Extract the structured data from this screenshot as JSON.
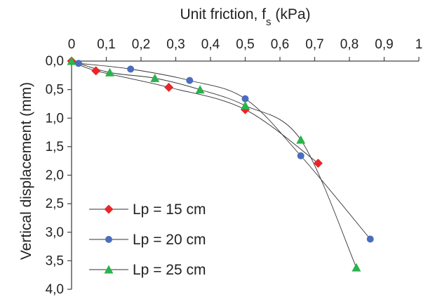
{
  "chart_data": {
    "type": "scatter",
    "xlabel": "Unit friction, f",
    "xlabel_sub": "s",
    "xlabel_unit": " (kPa)",
    "ylabel": "Vertical displacement  (mm)",
    "xlim": [
      0,
      1
    ],
    "ylim": [
      0,
      4
    ],
    "y_inverted": true,
    "x_axis_position": "top",
    "xticks": [
      0,
      0.1,
      0.2,
      0.3,
      0.4,
      0.5,
      0.6,
      0.7,
      0.8,
      0.9,
      1
    ],
    "xtick_labels": [
      "0",
      "0,1",
      "0,2",
      "0,3",
      "0,4",
      "0,5",
      "0,6",
      "0,7",
      "0,8",
      "0,9",
      "1"
    ],
    "yticks": [
      0,
      0.5,
      1,
      1.5,
      2,
      2.5,
      3,
      3.5,
      4
    ],
    "ytick_labels": [
      "0,0",
      "0,5",
      "1,0",
      "1,5",
      "2,0",
      "2,5",
      "3,0",
      "3,5",
      "4,0"
    ],
    "grid": false,
    "legend_position": "bottom-left",
    "series": [
      {
        "name": "Lp = 15 cm",
        "marker": "diamond",
        "color": "#e8262a",
        "points": [
          [
            0,
            0
          ],
          [
            0.07,
            0.17
          ],
          [
            0.28,
            0.46
          ],
          [
            0.5,
            0.85
          ],
          [
            0.71,
            1.79
          ]
        ]
      },
      {
        "name": "Lp = 20 cm",
        "marker": "circle",
        "color": "#4a6dbf",
        "points": [
          [
            0.02,
            0.04
          ],
          [
            0.17,
            0.14
          ],
          [
            0.34,
            0.34
          ],
          [
            0.5,
            0.66
          ],
          [
            0.66,
            1.66
          ],
          [
            0.86,
            3.12
          ]
        ]
      },
      {
        "name": "Lp = 25 cm",
        "marker": "triangle",
        "color": "#2bb24c",
        "points": [
          [
            0,
            0
          ],
          [
            0.11,
            0.2
          ],
          [
            0.24,
            0.3
          ],
          [
            0.37,
            0.5
          ],
          [
            0.5,
            0.78
          ],
          [
            0.66,
            1.38
          ],
          [
            0.82,
            3.62
          ]
        ]
      }
    ]
  }
}
